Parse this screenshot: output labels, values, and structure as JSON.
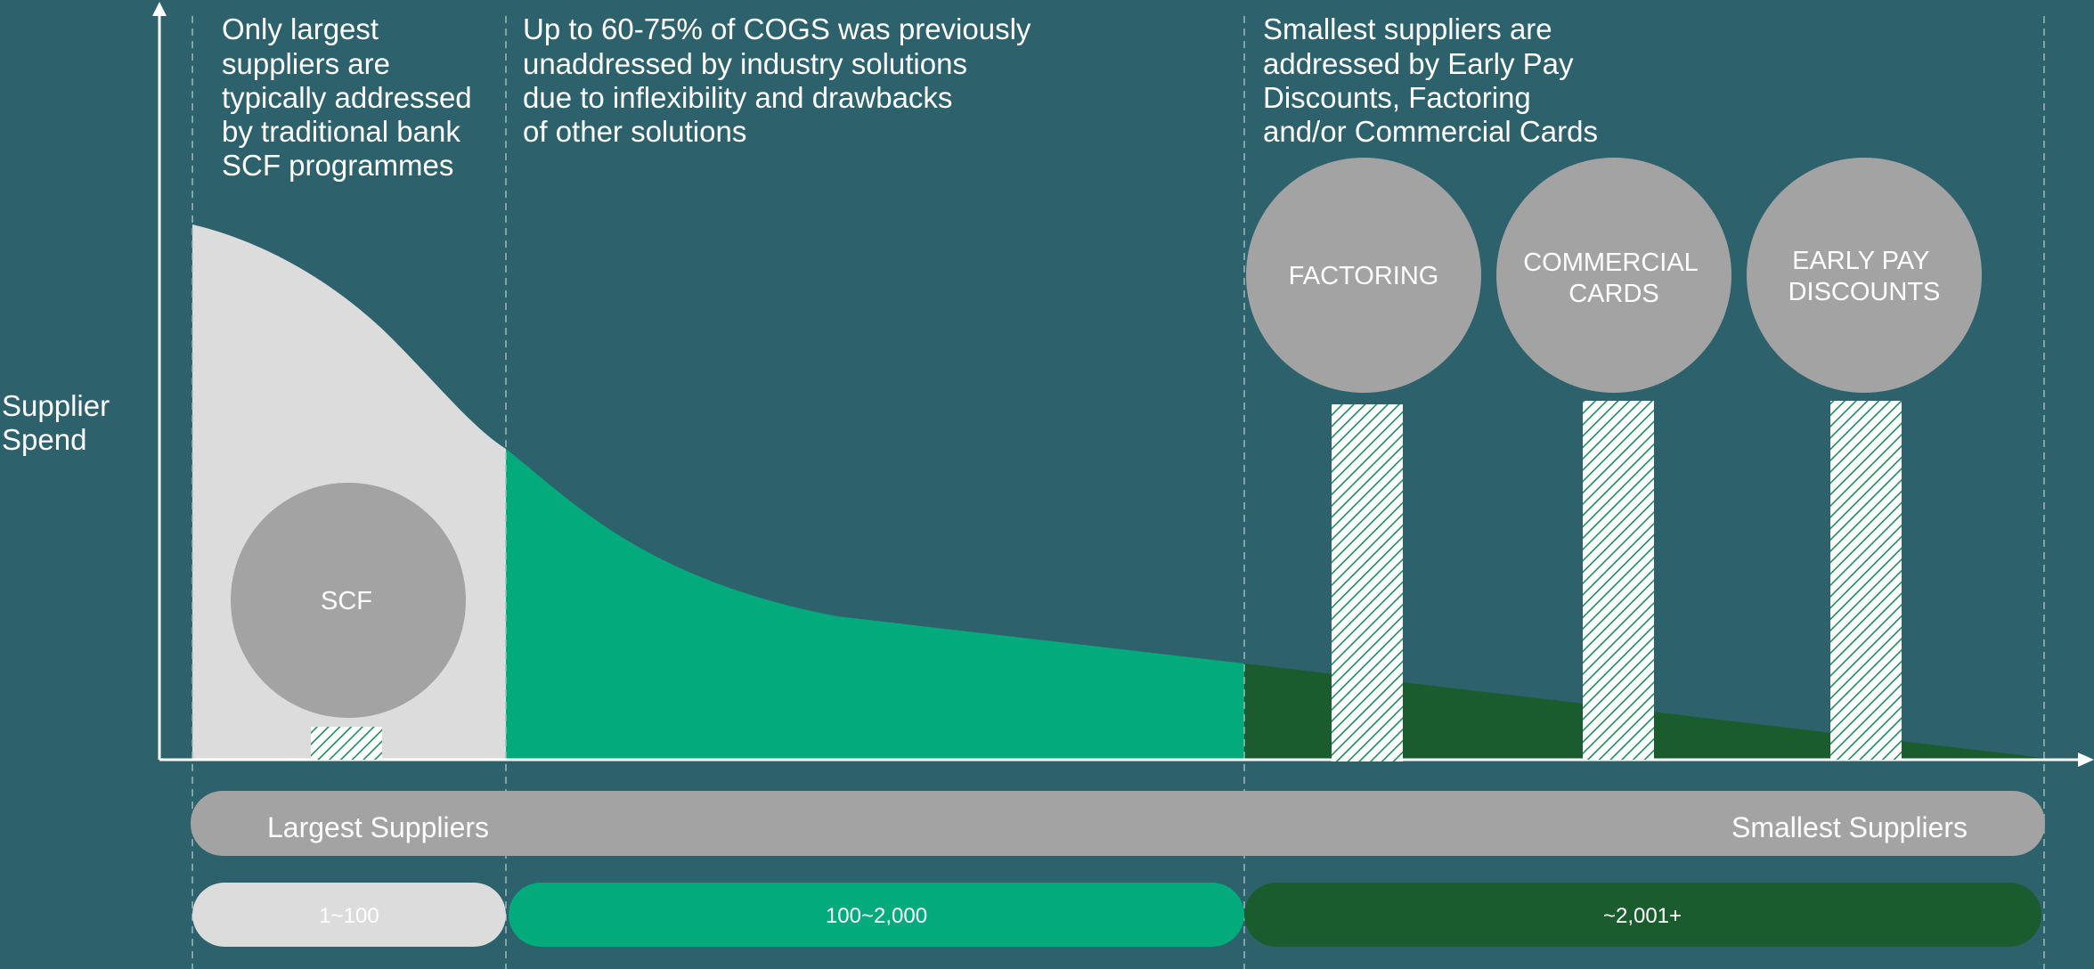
{
  "axis": {
    "ylabel_lines": [
      "Supplier",
      "Spend"
    ]
  },
  "annotations": {
    "left": [
      "Only largest",
      "suppliers are",
      "typically addressed",
      "by traditional bank",
      "SCF programmes"
    ],
    "middle": [
      "Up to 60-75% of COGS was previously",
      "unaddressed by industry solutions",
      "due to inflexibility and drawbacks",
      "of other solutions"
    ],
    "right": [
      "Smallest suppliers are",
      "addressed by Early Pay",
      "Discounts, Factoring",
      "and/or Commercial Cards"
    ]
  },
  "circles": {
    "scf": [
      "SCF"
    ],
    "factoring": [
      "FACTORING"
    ],
    "cards": [
      "COMMERCIAL",
      "CARDS"
    ],
    "epd": [
      "EARLY PAY",
      "DISCOUNTS"
    ]
  },
  "scale_bar": {
    "left_label": "Largest Suppliers",
    "right_label": "Smallest Suppliers"
  },
  "segments": [
    {
      "label": "1~100",
      "color": "#dcdcdc"
    },
    {
      "label": "100~2,000",
      "color": "#03aa7c"
    },
    {
      "label": "~2,001+",
      "color": "#1a5c2e"
    }
  ],
  "colors": {
    "background": "#2d626c",
    "largest_fill": "#dcdcdc",
    "mid_fill": "#03aa7c",
    "small_fill": "#1a5c2e",
    "circle": "#a3a3a3",
    "axis": "#ffffff"
  }
}
